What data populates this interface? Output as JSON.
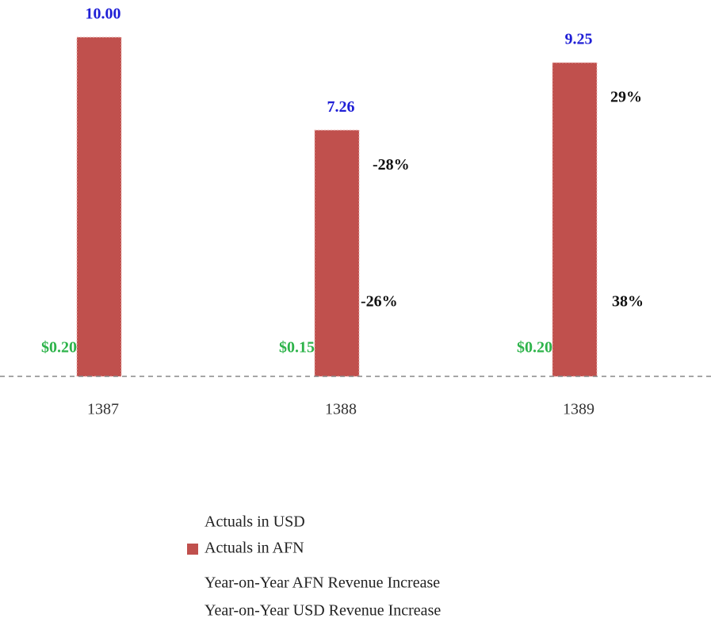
{
  "chart_data": {
    "type": "bar",
    "categories": [
      "1387",
      "1388",
      "1389"
    ],
    "ylim": [
      0,
      10
    ],
    "series": [
      {
        "name": "Actuals in USD",
        "color": "#ffffff",
        "values": [
          0.2,
          0.15,
          0.2
        ],
        "value_labels": [
          "$0.20",
          "$0.15",
          "$0.20"
        ]
      },
      {
        "name": "Actuals in AFN",
        "color": "#c0504d",
        "values": [
          10.0,
          7.26,
          9.25
        ],
        "value_labels": [
          "10.00",
          "7.26",
          "9.25"
        ]
      },
      {
        "name": "Year-on-Year AFN Revenue Increase",
        "values": [
          null,
          -28,
          29
        ],
        "value_labels": [
          null,
          "-28%",
          "29%"
        ]
      },
      {
        "name": "Year-on-Year USD Revenue Increase",
        "values": [
          null,
          -26,
          38
        ],
        "value_labels": [
          null,
          "-26%",
          "38%"
        ]
      }
    ]
  }
}
